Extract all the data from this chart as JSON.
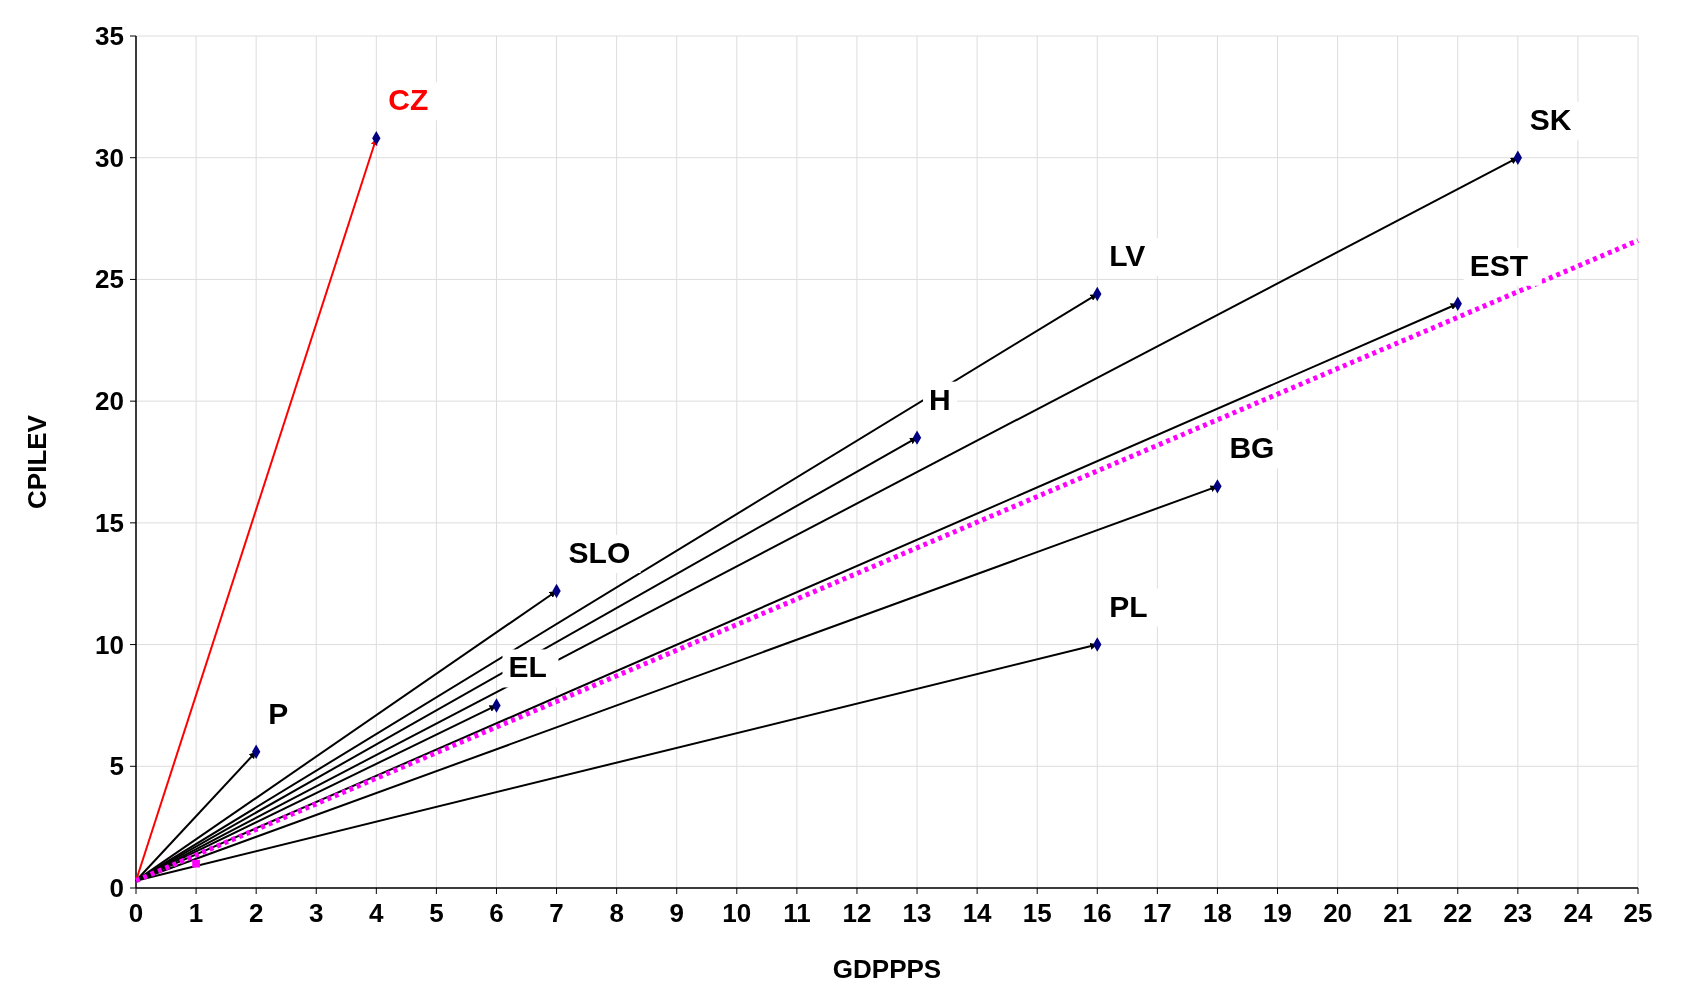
{
  "chart_data": {
    "type": "line",
    "xlabel": "GDPPPS",
    "ylabel": "CPILEV",
    "xlim": [
      0,
      25
    ],
    "ylim": [
      0,
      35
    ],
    "xticks": [
      0,
      1,
      2,
      3,
      4,
      5,
      6,
      7,
      8,
      9,
      10,
      11,
      12,
      13,
      14,
      15,
      16,
      17,
      18,
      19,
      20,
      21,
      22,
      23,
      24,
      25
    ],
    "yticks": [
      0,
      5,
      10,
      15,
      20,
      25,
      30,
      35
    ],
    "grid": true,
    "marker": "diamond",
    "series": [
      {
        "color": "#ff0000",
        "marker": "none",
        "x": [
          0,
          4
        ],
        "values": [
          0.3,
          30.8
        ]
      },
      {
        "color": "#000000",
        "marker": "none",
        "x": [
          0,
          2
        ],
        "values": [
          0.3,
          5.6
        ]
      },
      {
        "color": "#000000",
        "marker": "none",
        "x": [
          0,
          7
        ],
        "values": [
          0.3,
          12.2
        ]
      },
      {
        "color": "#000000",
        "marker": "none",
        "x": [
          0,
          6
        ],
        "values": [
          0.3,
          7.5
        ]
      },
      {
        "color": "#000000",
        "marker": "none",
        "x": [
          0,
          13
        ],
        "values": [
          0.3,
          18.5
        ]
      },
      {
        "color": "#000000",
        "marker": "none",
        "x": [
          0,
          16
        ],
        "values": [
          0.3,
          24.4
        ]
      },
      {
        "color": "#000000",
        "marker": "none",
        "x": [
          0,
          23
        ],
        "values": [
          0.3,
          30
        ]
      },
      {
        "color": "#000000",
        "marker": "none",
        "x": [
          0,
          22
        ],
        "values": [
          0.3,
          24
        ]
      },
      {
        "color": "#000000",
        "marker": "none",
        "x": [
          0,
          18
        ],
        "values": [
          0.3,
          16.5
        ]
      },
      {
        "color": "#000000",
        "marker": "none",
        "x": [
          0,
          16
        ],
        "values": [
          0.3,
          10
        ]
      },
      {
        "color": "#ff00ff",
        "marker": "none",
        "line_style": "dotted",
        "x": [
          0,
          25
        ],
        "values": [
          0.3,
          26.6
        ]
      },
      {
        "type": "scatter",
        "color": "#ff00ff",
        "marker": "square",
        "x": [
          1
        ],
        "values": [
          1
        ]
      },
      {
        "type": "scatter",
        "color": "#000080",
        "x": [
          4,
          2,
          7,
          6,
          13,
          16,
          23,
          22,
          18,
          16
        ],
        "values": [
          30.8,
          5.6,
          12.2,
          7.5,
          18.5,
          24.4,
          30,
          24,
          16.5,
          10
        ]
      }
    ],
    "annotations": [
      {
        "text": "CZ",
        "x": 4,
        "y": 30.8
      },
      {
        "text": "P",
        "x": 2,
        "y": 5.6
      },
      {
        "text": "SLO",
        "x": 7,
        "y": 12.2
      },
      {
        "text": "EL",
        "x": 6,
        "y": 7.5
      },
      {
        "text": "H",
        "x": 13,
        "y": 18.5
      },
      {
        "text": "LV",
        "x": 16,
        "y": 24.4
      },
      {
        "text": "SK",
        "x": 23,
        "y": 30
      },
      {
        "text": "EST",
        "x": 22,
        "y": 24
      },
      {
        "text": "BG",
        "x": 18,
        "y": 16.5
      },
      {
        "text": "PL",
        "x": 16,
        "y": 10
      }
    ]
  }
}
